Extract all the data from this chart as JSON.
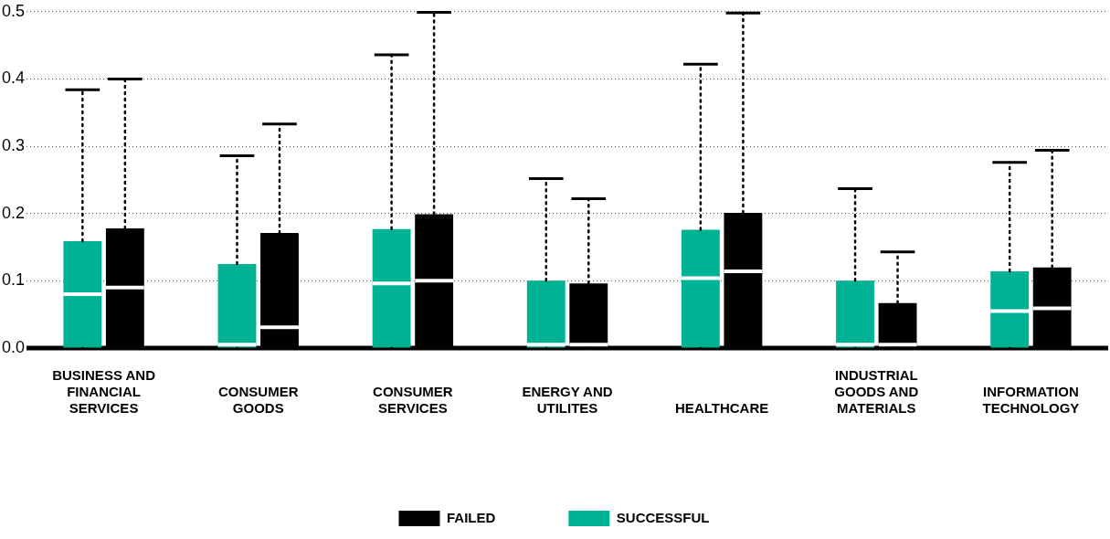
{
  "chart_data": {
    "type": "box",
    "categories": [
      "BUSINESS AND FINANCIAL SERVICES",
      "CONSUMER GOODS",
      "CONSUMER SERVICES",
      "ENERGY AND UTILITES",
      "HEALTHCARE",
      "INDUSTRIAL GOODS AND MATERIALS",
      "INFORMATION TECHNOLOGY"
    ],
    "series": [
      {
        "name": "SUCCESSFUL",
        "color": "#00b294",
        "boxes": [
          {
            "low": 0,
            "q1": 0,
            "median": 0.08,
            "q3": 0.159,
            "high": 0.384
          },
          {
            "low": 0,
            "q1": 0,
            "median": 0.005,
            "q3": 0.125,
            "high": 0.286
          },
          {
            "low": 0,
            "q1": 0,
            "median": 0.096,
            "q3": 0.177,
            "high": 0.436
          },
          {
            "low": 0,
            "q1": 0,
            "median": 0.005,
            "q3": 0.1,
            "high": 0.252
          },
          {
            "low": 0,
            "q1": 0,
            "median": 0.104,
            "q3": 0.176,
            "high": 0.422
          },
          {
            "low": 0,
            "q1": 0,
            "median": 0.005,
            "q3": 0.1,
            "high": 0.237
          },
          {
            "low": 0,
            "q1": 0,
            "median": 0.055,
            "q3": 0.114,
            "high": 0.276
          }
        ]
      },
      {
        "name": "FAILED",
        "color": "#000000",
        "boxes": [
          {
            "low": 0,
            "q1": 0,
            "median": 0.09,
            "q3": 0.178,
            "high": 0.4
          },
          {
            "low": 0,
            "q1": 0,
            "median": 0.031,
            "q3": 0.171,
            "high": 0.333
          },
          {
            "low": 0,
            "q1": 0,
            "median": 0.1,
            "q3": 0.199,
            "high": 0.499
          },
          {
            "low": 0,
            "q1": 0,
            "median": 0.005,
            "q3": 0.096,
            "high": 0.222
          },
          {
            "low": 0,
            "q1": 0,
            "median": 0.114,
            "q3": 0.201,
            "high": 0.498
          },
          {
            "low": 0,
            "q1": 0,
            "median": 0.005,
            "q3": 0.067,
            "high": 0.143
          },
          {
            "low": 0,
            "q1": 0,
            "median": 0.059,
            "q3": 0.12,
            "high": 0.294
          }
        ]
      }
    ],
    "ylim": [
      0,
      0.5
    ],
    "yticks": [
      {
        "value": 0,
        "label": "0.0"
      },
      {
        "value": 0.1,
        "label": "0.1"
      },
      {
        "value": 0.2,
        "label": "0.2"
      },
      {
        "value": 0.3,
        "label": "0.3"
      },
      {
        "value": 0.4,
        "label": "0.4"
      },
      {
        "value": 0.5,
        "label": "0.5"
      }
    ],
    "grid": "y",
    "legend": "bottom",
    "line_style": "dotted"
  }
}
